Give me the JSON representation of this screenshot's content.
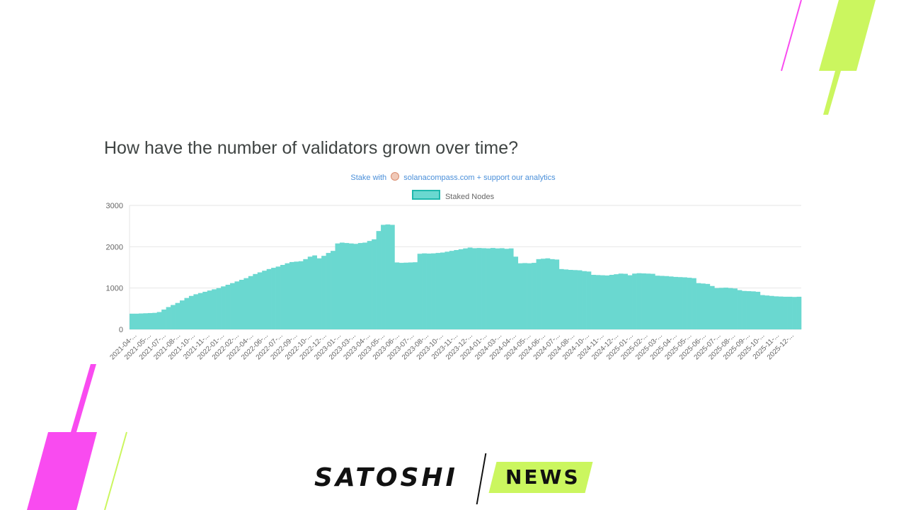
{
  "page": {
    "title": "How have the number of validators grown over time?",
    "stake_prefix": "Stake with",
    "stake_link": "solanacompass.com + support our analytics",
    "brand_left": "SATOSHI",
    "brand_right": "NEWS"
  },
  "colors": {
    "bar_fill": "#6ad8d0",
    "bar_border": "#1fb8ad",
    "accent_pink": "#f94bf0",
    "accent_lime": "#cbf65f",
    "link": "#4a8fd9"
  },
  "icons": [
    "solanacompass-logo-icon"
  ],
  "chart_data": {
    "type": "bar",
    "title": "",
    "xlabel": "",
    "ylabel": "",
    "ylim": [
      0,
      3000
    ],
    "y_ticks": [
      0,
      1000,
      2000,
      3000
    ],
    "grid": true,
    "legend_position": "top-center",
    "x_tick_labels": [
      "2021-04-...",
      "2021-05-...",
      "2021-07-...",
      "2021-08-...",
      "2021-10-...",
      "2021-11-...",
      "2022-01-...",
      "2022-02-...",
      "2022-04-...",
      "2022-06-...",
      "2022-07-...",
      "2022-09-...",
      "2022-10-...",
      "2022-12-...",
      "2023-01-...",
      "2023-03-...",
      "2023-04-...",
      "2023-05-...",
      "2023-06-...",
      "2023-07-...",
      "2023-08-...",
      "2023-10-...",
      "2023-11-...",
      "2023-12-...",
      "2024-01-...",
      "2024-03-...",
      "2024-04-...",
      "2024-05-...",
      "2024-06-...",
      "2024-07-...",
      "2024-08-...",
      "2024-10-...",
      "2024-11-...",
      "2024-12-...",
      "2025-01-...",
      "2025-02-...",
      "2025-03-...",
      "2025-04-...",
      "2025-05-...",
      "2025-06-...",
      "2025-07-...",
      "2025-08-...",
      "2025-09-...",
      "2025-10-...",
      "2025-11-...",
      "2025-12-..."
    ],
    "series": [
      {
        "name": "Staked Nodes",
        "values": [
          380,
          380,
          385,
          390,
          395,
          400,
          420,
          480,
          540,
          590,
          640,
          700,
          760,
          810,
          850,
          880,
          910,
          940,
          970,
          1000,
          1040,
          1080,
          1120,
          1160,
          1200,
          1240,
          1290,
          1340,
          1380,
          1420,
          1460,
          1490,
          1520,
          1560,
          1600,
          1630,
          1640,
          1650,
          1700,
          1760,
          1790,
          1720,
          1780,
          1850,
          1900,
          2080,
          2100,
          2090,
          2080,
          2070,
          2090,
          2100,
          2140,
          2180,
          2380,
          2530,
          2540,
          2530,
          1620,
          1610,
          1615,
          1620,
          1625,
          1830,
          1840,
          1835,
          1840,
          1850,
          1860,
          1880,
          1900,
          1920,
          1940,
          1960,
          1980,
          1965,
          1970,
          1965,
          1960,
          1970,
          1960,
          1965,
          1950,
          1960,
          1760,
          1600,
          1605,
          1600,
          1610,
          1700,
          1710,
          1720,
          1700,
          1690,
          1460,
          1450,
          1440,
          1435,
          1430,
          1410,
          1400,
          1320,
          1315,
          1310,
          1305,
          1320,
          1335,
          1350,
          1345,
          1310,
          1350,
          1360,
          1355,
          1350,
          1345,
          1300,
          1295,
          1290,
          1280,
          1270,
          1265,
          1260,
          1250,
          1240,
          1120,
          1110,
          1100,
          1050,
          1000,
          1005,
          1010,
          1000,
          990,
          950,
          930,
          925,
          920,
          910,
          830,
          820,
          810,
          800,
          795,
          790,
          790,
          785,
          790
        ]
      }
    ]
  }
}
